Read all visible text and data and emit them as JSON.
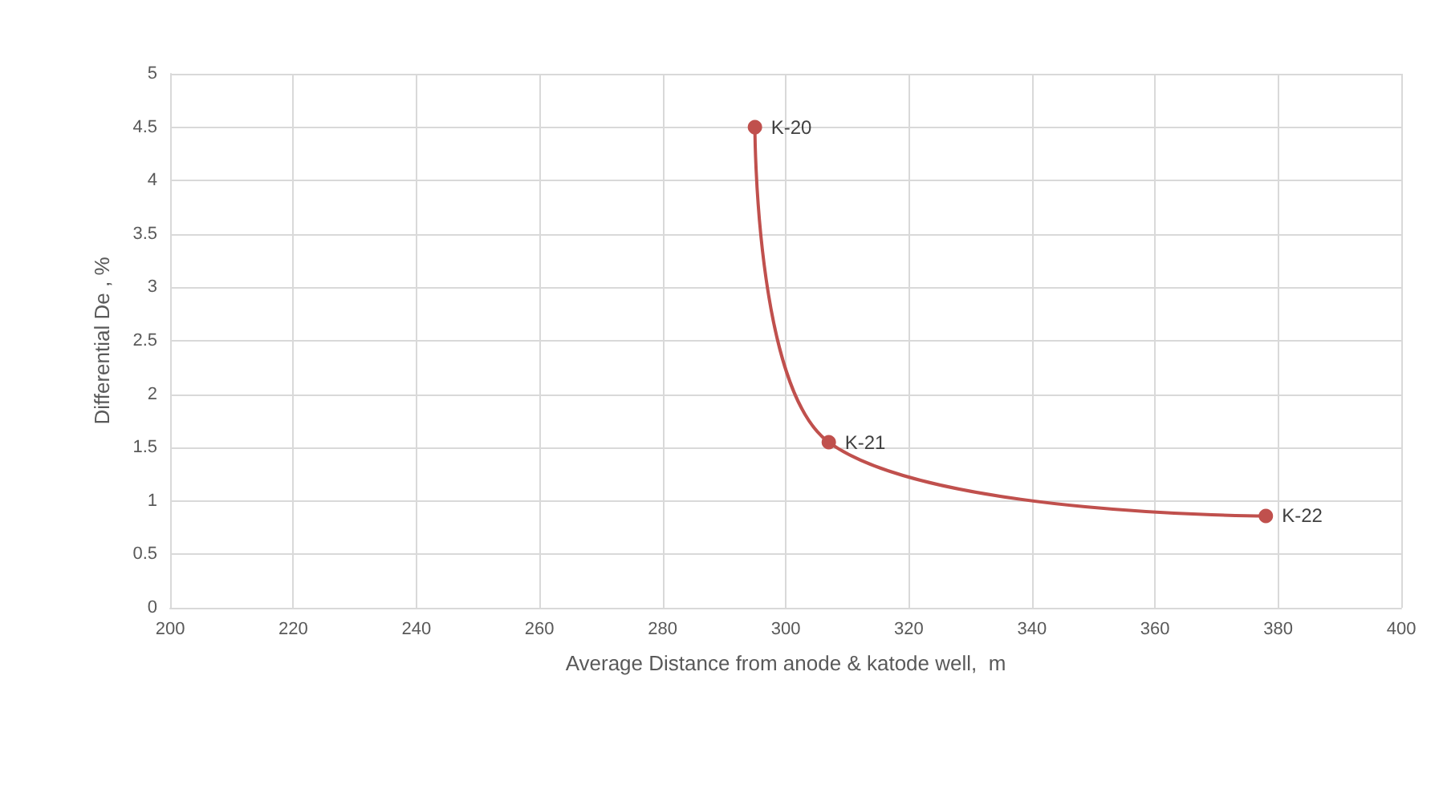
{
  "chart_data": {
    "type": "line",
    "xlabel": "Average Distance from anode & katode well,  m",
    "ylabel": "Differential De , %",
    "x": [
      295,
      307,
      378
    ],
    "series": [
      {
        "color": "#c0504d",
        "values": [
          4.5,
          1.55,
          0.86
        ]
      }
    ],
    "xlim": [
      200,
      400
    ],
    "xticks": [
      200,
      220,
      240,
      260,
      280,
      300,
      320,
      340,
      360,
      380,
      400
    ],
    "ylim": [
      0,
      5
    ],
    "yticks": [
      0,
      0.5,
      1,
      1.5,
      2,
      2.5,
      3,
      3.5,
      4,
      4.5,
      5
    ],
    "grid": true,
    "marker": "circle",
    "line_style": "solid",
    "annotations": [
      {
        "text": "K-20",
        "x": 295,
        "y": 4.5
      },
      {
        "text": "K-21",
        "x": 307,
        "y": 1.55
      },
      {
        "text": "K-22",
        "x": 378,
        "y": 0.86
      }
    ]
  }
}
